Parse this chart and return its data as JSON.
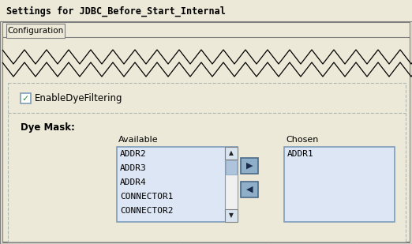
{
  "title": "Settings for JDBC_Before_Start_Internal",
  "tab_label": "Configuration",
  "checkbox_label": "EnableDyeFiltering",
  "dye_mask_label": "Dye Mask:",
  "available_label": "Available",
  "chosen_label": "Chosen",
  "available_items": [
    "ADDR2",
    "ADDR3",
    "ADDR4",
    "CONNECTOR1",
    "CONNECTOR2"
  ],
  "chosen_items": [
    "ADDR1"
  ],
  "bg_color": "#ece9d8",
  "panel_bg": "#ece9d8",
  "white": "#ffffff",
  "listbox_bg": "#dce6f5",
  "listbox_border": "#7f9db9",
  "tab_bg": "#ece9d8",
  "title_color": "#000000",
  "text_color": "#000000",
  "check_color": "#3a8a3a",
  "button_bg": "#7b96b8",
  "dashed_border": "#b0b8b0",
  "zigzag_color": "#000000",
  "inner_panel_bg": "#ece9d8",
  "scrollbar_bg": "#dce6f5",
  "scrollbar_thumb": "#aec4dc",
  "title_bg": "#ece9d8",
  "border_color": "#808080"
}
